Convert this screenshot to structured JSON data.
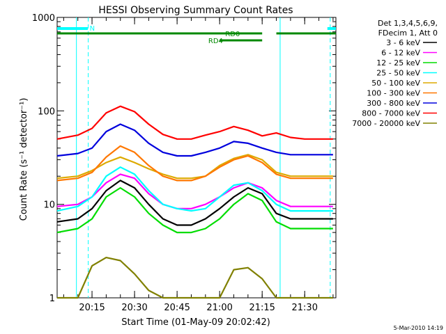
{
  "chart_data": {
    "type": "line",
    "title": "HESSI Observing Summary Count Rates",
    "xlabel": "Start Time (01-May-09 20:02:42)",
    "ylabel": "Count Rate (s⁻¹ detector⁻¹)",
    "y_scale": "log",
    "ylim": [
      1,
      1000
    ],
    "xlim": [
      "20:02:42",
      "21:41:00"
    ],
    "grid": false,
    "legend_position": "right",
    "y_ticks": [
      {
        "value": 1,
        "label": "1"
      },
      {
        "value": 10,
        "label": "10"
      },
      {
        "value": 100,
        "label": "100"
      },
      {
        "value": 1000,
        "label": "1000"
      }
    ],
    "x_ticks": [
      {
        "time": "20:15",
        "label": "20:15"
      },
      {
        "time": "20:30",
        "label": "20:30"
      },
      {
        "time": "20:45",
        "label": "20:45"
      },
      {
        "time": "21:00",
        "label": "21:00"
      },
      {
        "time": "21:15",
        "label": "21:15"
      },
      {
        "time": "21:30",
        "label": "21:30"
      }
    ],
    "legend_header": [
      "Det 1,3,4,5,6,9,",
      "FDecim 1, Att 0"
    ],
    "times": [
      "20:02:42",
      "20:10",
      "20:15",
      "20:20",
      "20:25",
      "20:30",
      "20:35",
      "20:40",
      "20:45",
      "20:50",
      "20:55",
      "21:00",
      "21:05",
      "21:10",
      "21:15",
      "21:20",
      "21:25",
      "21:30",
      "21:35",
      "21:40"
    ],
    "series": [
      {
        "name": "3 - 6 keV",
        "color": "#000000",
        "values": [
          6.5,
          7,
          9,
          14,
          18,
          15,
          10,
          7,
          6,
          6,
          7,
          9,
          12,
          15,
          13,
          8,
          7,
          7,
          7,
          7
        ]
      },
      {
        "name": "6 - 12 keV",
        "color": "#ff00ff",
        "values": [
          9.5,
          10,
          12,
          17,
          21,
          19,
          13,
          10,
          9,
          9,
          10,
          12,
          15,
          17,
          15,
          11,
          9.5,
          9.5,
          9.5,
          9.5
        ]
      },
      {
        "name": "12 - 25 keV",
        "color": "#00dd00",
        "values": [
          5,
          5.5,
          7,
          12,
          15,
          12,
          8,
          6,
          5,
          5,
          5.5,
          7,
          10,
          13,
          11,
          6.5,
          5.5,
          5.5,
          5.5,
          5.5
        ]
      },
      {
        "name": "25 - 50 keV",
        "color": "#00ffff",
        "values": [
          8.5,
          9.5,
          12,
          20,
          25,
          21,
          14,
          10,
          9,
          8.5,
          9,
          12,
          16,
          17,
          14,
          10,
          8.5,
          8.5,
          8.5,
          8.5
        ]
      },
      {
        "name": "50 - 100 keV",
        "color": "#ddaa00",
        "values": [
          19,
          20,
          23,
          28,
          32,
          28,
          24,
          21,
          19,
          19,
          20,
          26,
          31,
          34,
          30,
          22,
          20,
          20,
          20,
          20
        ]
      },
      {
        "name": "100 - 300 keV",
        "color": "#ff7700",
        "values": [
          18,
          19,
          22,
          32,
          42,
          36,
          26,
          20,
          18,
          18,
          20,
          25,
          30,
          33,
          28,
          21,
          19,
          19,
          19,
          19
        ]
      },
      {
        "name": "300 - 800 keV",
        "color": "#0000dd",
        "values": [
          33,
          35,
          40,
          60,
          72,
          62,
          45,
          36,
          33,
          33,
          36,
          40,
          47,
          45,
          40,
          36,
          34,
          34,
          34,
          34
        ]
      },
      {
        "name": "800 - 7000 keV",
        "color": "#ff0000",
        "values": [
          50,
          55,
          65,
          95,
          112,
          98,
          72,
          56,
          50,
          50,
          55,
          60,
          68,
          62,
          54,
          58,
          52,
          50,
          50,
          50
        ]
      },
      {
        "name": "7000 - 20000 keV",
        "color": "#808000",
        "values": [
          1,
          1,
          2.2,
          2.7,
          2.5,
          1.8,
          1.2,
          1,
          1,
          1,
          1,
          1,
          2,
          2.1,
          1.6,
          1,
          1,
          1,
          1,
          1
        ]
      }
    ],
    "annotations": [
      {
        "text": "N",
        "color": "#00ffff"
      },
      {
        "text": "RD0",
        "color": "#008800"
      },
      {
        "text": "RD4",
        "color": "#008800"
      }
    ],
    "timestamp": "5-Mar-2010 14:19"
  }
}
